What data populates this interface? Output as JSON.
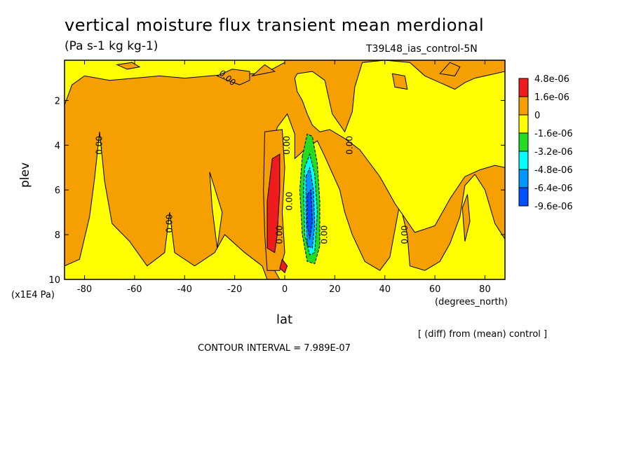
{
  "header": {
    "title": "vertical moisture flux transient mean merdional",
    "units": "(Pa s-1 kg kg-1)",
    "run_id": "T39L48_ias_control-5N"
  },
  "footer": {
    "diff_note": "[ (diff) from (mean) control ]",
    "contour_interval": "CONTOUR INTERVAL = 7.989E-07"
  },
  "chart_data": {
    "type": "heatmap",
    "title": "vertical moisture flux transient mean merdional",
    "subtitle": "(Pa s-1 kg kg-1)",
    "xlabel": "lat",
    "xunit": "(degrees_north)",
    "ylabel": "plev",
    "yunit": "(x1E4 Pa)",
    "xlim": [
      -88,
      88
    ],
    "ylim": [
      10,
      0.2
    ],
    "x_ticks": [
      -80,
      -60,
      -40,
      -20,
      0,
      20,
      40,
      60,
      80
    ],
    "x_tick_labels": [
      "-80",
      "-60",
      "-40",
      "-20",
      "0",
      "20",
      "40",
      "60",
      "80"
    ],
    "y_ticks": [
      2,
      4,
      6,
      8,
      10
    ],
    "y_tick_labels": [
      "2",
      "4",
      "6",
      "8",
      "10"
    ],
    "contour_label": "0.00",
    "legend": {
      "labels": [
        "4.8e-06",
        "1.6e-06",
        "0",
        "-1.6e-06",
        "-3.2e-06",
        "-4.8e-06",
        "-6.4e-06",
        "-9.6e-06"
      ],
      "colors": [
        "#ee1c1c",
        "#f5a000",
        "#ffff00",
        "#22dd22",
        "#00ffff",
        "#0096ff",
        "#0050ff"
      ]
    },
    "colors": {
      "positive": "#f5a000",
      "near_zero": "#ffff00",
      "strong_positive": "#ee1c1c",
      "neg_1": "#22dd22",
      "neg_2": "#00ffff",
      "neg_3": "#0096ff",
      "neg_4": "#0050ff"
    },
    "regions": [
      {
        "level": "near_zero",
        "pts": [
          [
            -88,
            9.4
          ],
          [
            -82,
            9.1
          ],
          [
            -78,
            7.2
          ],
          [
            -76,
            5.5
          ],
          [
            -74,
            3.4
          ],
          [
            -72,
            5.6
          ],
          [
            -69,
            7.5
          ],
          [
            -62,
            8.3
          ],
          [
            -55,
            9.4
          ],
          [
            -48,
            8.8
          ],
          [
            -46,
            7.0
          ],
          [
            -44,
            8.8
          ],
          [
            -36,
            9.4
          ],
          [
            -28,
            8.8
          ],
          [
            -24,
            8.0
          ],
          [
            -16,
            8.8
          ],
          [
            -9,
            9.4
          ],
          [
            -7,
            10
          ],
          [
            -88,
            10
          ]
        ]
      },
      {
        "level": "near_zero",
        "pts": [
          [
            -2,
            10
          ],
          [
            -4,
            9.6
          ],
          [
            -3,
            8.0
          ],
          [
            -7,
            7.0
          ],
          [
            -7,
            5.0
          ],
          [
            -3,
            3.2
          ],
          [
            1,
            2.6
          ],
          [
            4,
            3.5
          ],
          [
            4,
            4.6
          ],
          [
            8,
            4.2
          ],
          [
            13,
            3.8
          ],
          [
            16,
            4.5
          ],
          [
            22,
            6.0
          ],
          [
            24,
            7.0
          ],
          [
            27,
            8.0
          ],
          [
            32,
            9.2
          ],
          [
            38,
            9.6
          ],
          [
            42,
            9.0
          ],
          [
            44,
            7.8
          ],
          [
            46,
            6.6
          ],
          [
            49,
            8.0
          ],
          [
            50,
            9.4
          ],
          [
            56,
            9.6
          ],
          [
            62,
            9.2
          ],
          [
            66,
            8.4
          ],
          [
            70,
            7.2
          ],
          [
            72,
            5.8
          ],
          [
            76,
            5.3
          ],
          [
            80,
            6.0
          ],
          [
            84,
            7.5
          ],
          [
            88,
            8.2
          ],
          [
            88,
            10
          ]
        ]
      },
      {
        "level": "near_zero",
        "pts": [
          [
            5,
            0.8
          ],
          [
            11,
            0.7
          ],
          [
            16,
            1.1
          ],
          [
            19,
            2.6
          ],
          [
            24,
            3.4
          ],
          [
            27,
            2.5
          ],
          [
            28,
            1.4
          ],
          [
            31,
            0.3
          ],
          [
            40,
            0.2
          ],
          [
            50,
            0.3
          ],
          [
            56,
            0.9
          ],
          [
            62,
            1.2
          ],
          [
            68,
            1.5
          ],
          [
            72,
            1.2
          ],
          [
            76,
            1.0
          ],
          [
            84,
            0.8
          ],
          [
            88,
            0.7
          ],
          [
            88,
            5.0
          ],
          [
            84,
            4.9
          ],
          [
            78,
            5.1
          ],
          [
            72,
            5.4
          ],
          [
            66,
            6.4
          ],
          [
            60,
            7.6
          ],
          [
            52,
            7.9
          ],
          [
            44,
            6.6
          ],
          [
            38,
            5.4
          ],
          [
            30,
            4.2
          ],
          [
            24,
            3.7
          ],
          [
            18,
            3.3
          ],
          [
            14,
            3.4
          ],
          [
            11,
            3.1
          ],
          [
            9,
            2.6
          ],
          [
            7,
            2.0
          ],
          [
            5,
            1.6
          ],
          [
            4,
            1.0
          ]
        ]
      },
      {
        "level": "near_zero",
        "pts": [
          [
            -88,
            2.2
          ],
          [
            -85,
            1.3
          ],
          [
            -80,
            0.9
          ],
          [
            -70,
            1.1
          ],
          [
            -60,
            1.0
          ],
          [
            -50,
            0.9
          ],
          [
            -40,
            1.0
          ],
          [
            -30,
            0.9
          ],
          [
            -20,
            0.8
          ],
          [
            -12,
            0.8
          ],
          [
            -5,
            0.6
          ],
          [
            0,
            0.3
          ],
          [
            0,
            0.2
          ],
          [
            -88,
            0.2
          ]
        ]
      },
      {
        "level": "positive",
        "pts": [
          [
            -18,
            1.3
          ],
          [
            -23,
            1.1
          ],
          [
            -27,
            0.9
          ],
          [
            -21,
            0.6
          ],
          [
            -14,
            0.7
          ],
          [
            -14,
            1.1
          ]
        ]
      },
      {
        "level": "positive",
        "pts": [
          [
            -63,
            0.6
          ],
          [
            -67,
            0.4
          ],
          [
            -61,
            0.3
          ],
          [
            -58,
            0.5
          ]
        ]
      },
      {
        "level": "near_zero",
        "pts": [
          [
            -30,
            5.2
          ],
          [
            -29,
            6.8
          ],
          [
            -27,
            8.6
          ],
          [
            -25,
            7.0
          ]
        ]
      },
      {
        "level": "positive",
        "pts": [
          [
            44,
            1.4
          ],
          [
            43,
            0.8
          ],
          [
            48,
            0.9
          ],
          [
            49,
            1.5
          ]
        ]
      },
      {
        "level": "positive",
        "pts": [
          [
            -13,
            0.9
          ],
          [
            -8,
            0.4
          ],
          [
            -4,
            0.7
          ]
        ]
      },
      {
        "level": "positive",
        "pts": [
          [
            62,
            0.8
          ],
          [
            66,
            0.3
          ],
          [
            70,
            0.5
          ],
          [
            68,
            0.9
          ]
        ]
      },
      {
        "level": "positive",
        "pts": [
          [
            72,
            8.3
          ],
          [
            71,
            6.8
          ],
          [
            73,
            6.2
          ],
          [
            74,
            7.4
          ]
        ]
      },
      {
        "level": "positive",
        "pts": [
          [
            -8,
            3.4
          ],
          [
            -1,
            3.3
          ],
          [
            0,
            5.0
          ],
          [
            -1,
            7.0
          ],
          [
            0,
            8.8
          ],
          [
            -2,
            9.6
          ],
          [
            -7,
            9.6
          ],
          [
            -8,
            8.0
          ],
          [
            -8.5,
            6.0
          ]
        ]
      },
      {
        "level": "strong_positive",
        "pts": [
          [
            -5,
            4.6
          ],
          [
            -2,
            4.4
          ],
          [
            -2,
            6.0
          ],
          [
            -3,
            8.0
          ],
          [
            -4,
            8.8
          ],
          [
            -7,
            8.6
          ],
          [
            -7,
            6.5
          ]
        ]
      },
      {
        "level": "strong_positive",
        "pts": [
          [
            -2,
            9.5
          ],
          [
            -1,
            9.1
          ],
          [
            1,
            9.4
          ],
          [
            0,
            9.7
          ]
        ]
      },
      {
        "level": "neg_1",
        "pts": [
          [
            7,
            4.5
          ],
          [
            9,
            3.5
          ],
          [
            11,
            3.6
          ],
          [
            13,
            4.8
          ],
          [
            14,
            6.5
          ],
          [
            14,
            8.5
          ],
          [
            12,
            9.3
          ],
          [
            9,
            9.2
          ],
          [
            7,
            8.0
          ],
          [
            6,
            6.0
          ]
        ]
      },
      {
        "level": "neg_2",
        "pts": [
          [
            8,
            5.0
          ],
          [
            10,
            4.4
          ],
          [
            12,
            5.3
          ],
          [
            13,
            7.0
          ],
          [
            12,
            8.8
          ],
          [
            10,
            8.9
          ],
          [
            8,
            8.0
          ],
          [
            7.5,
            6.0
          ]
        ]
      },
      {
        "level": "neg_3",
        "pts": [
          [
            8.5,
            5.4
          ],
          [
            10,
            5.0
          ],
          [
            11.5,
            6.0
          ],
          [
            12,
            7.6
          ],
          [
            11,
            8.6
          ],
          [
            9,
            8.5
          ],
          [
            8.5,
            7.0
          ]
        ]
      },
      {
        "level": "neg_4",
        "pts": [
          [
            9,
            6.2
          ],
          [
            10.5,
            6.0
          ],
          [
            11,
            7.4
          ],
          [
            10,
            8.2
          ],
          [
            9,
            7.6
          ]
        ]
      }
    ]
  }
}
